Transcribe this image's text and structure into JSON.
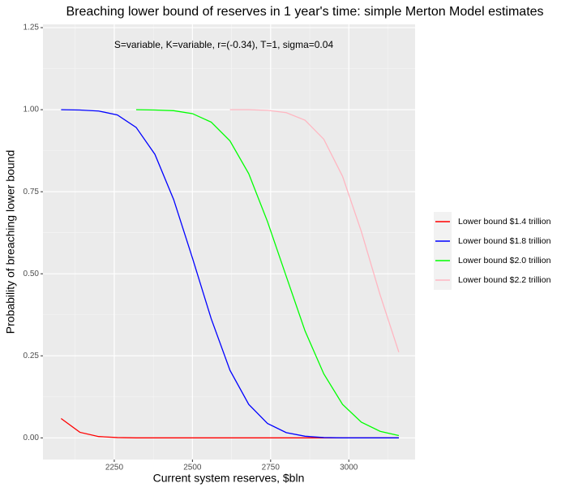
{
  "chart_data": {
    "type": "line",
    "title": "Breaching lower bound of reserves in 1 year's time: simple Merton Model estimates",
    "annotation": "S=variable, K=variable, r=(-0.34), T=1, sigma=0.04",
    "x_label": "Current system reserves, $bln",
    "y_label": "Probability of breaching lower bound",
    "x": [
      2080,
      2140,
      2200,
      2260,
      2320,
      2380,
      2440,
      2500,
      2560,
      2620,
      2680,
      2740,
      2800,
      2860,
      2920,
      2980,
      3040,
      3100,
      3160
    ],
    "series": [
      {
        "name": "Lower bound $1.4 trillion",
        "color": "#ff0000",
        "values": [
          0.059,
          0.017,
          0.004,
          0.001,
          0,
          0,
          0,
          0,
          0,
          0,
          0,
          0,
          0,
          0,
          0,
          0,
          0,
          0,
          0
        ]
      },
      {
        "name": "Lower bound $1.8 trillion",
        "color": "#0000ff",
        "values": [
          1.0,
          0.999,
          0.996,
          0.984,
          0.946,
          0.864,
          0.726,
          0.548,
          0.363,
          0.206,
          0.102,
          0.044,
          0.016,
          0.005,
          0.001,
          0,
          0,
          0,
          0
        ]
      },
      {
        "name": "Lower bound $2.0 trillion",
        "color": "#00ff00",
        "values": [
          null,
          null,
          null,
          null,
          1.0,
          0.999,
          0.997,
          0.988,
          0.962,
          0.905,
          0.805,
          0.659,
          0.492,
          0.326,
          0.195,
          0.102,
          0.048,
          0.02,
          0.007
        ]
      },
      {
        "name": "Lower bound $2.2 trillion",
        "color": "#ffb6c1",
        "values": [
          null,
          null,
          null,
          null,
          null,
          null,
          null,
          null,
          null,
          1.0,
          1.0,
          0.998,
          0.991,
          0.968,
          0.91,
          0.797,
          0.629,
          0.436,
          0.261
        ]
      }
    ],
    "xlim": [
      2022,
      3212
    ],
    "xticks": [
      2250,
      2500,
      2750,
      3000
    ],
    "ylim": [
      -0.066,
      1.26
    ],
    "yticks": [
      {
        "value": 0,
        "label": "0.00"
      },
      {
        "value": 0.25,
        "label": "0.25"
      },
      {
        "value": 0.5,
        "label": "0.50"
      },
      {
        "value": 0.75,
        "label": "0.75"
      },
      {
        "value": 1,
        "label": "1.00"
      },
      {
        "value": 1.25,
        "label": "1.25"
      }
    ],
    "grid": true,
    "legend_position": "right"
  }
}
